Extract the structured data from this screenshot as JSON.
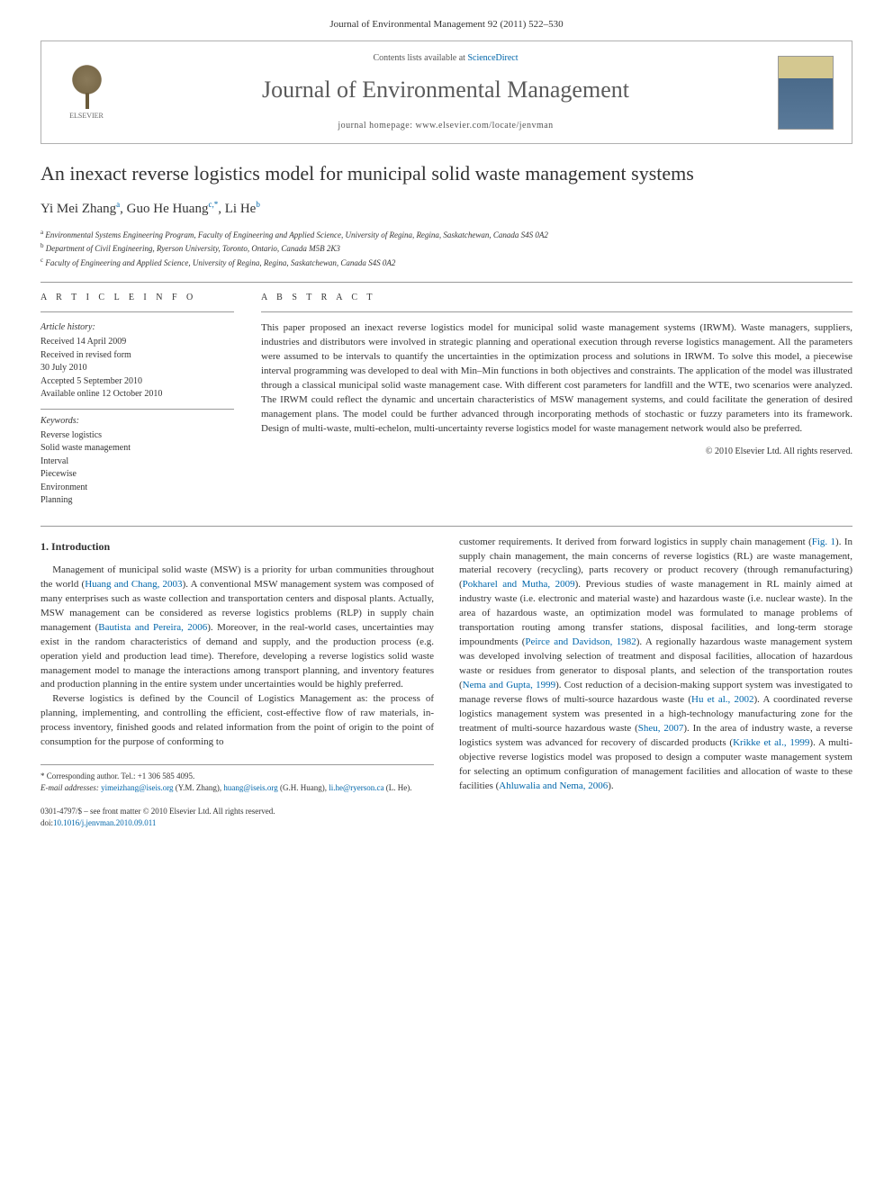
{
  "header": {
    "journal_citation": "Journal of Environmental Management 92 (2011) 522–530",
    "contents_prefix": "Contents lists available at ",
    "contents_link": "ScienceDirect",
    "journal_name": "Journal of Environmental Management",
    "homepage_prefix": "journal homepage: ",
    "homepage_url": "www.elsevier.com/locate/jenvman",
    "publisher_name": "ELSEVIER"
  },
  "article": {
    "title": "An inexact reverse logistics model for municipal solid waste management systems",
    "authors_html": "Yi Mei Zhang|a|, Guo He Huang|c,*|, Li He|b|",
    "authors": [
      {
        "name": "Yi Mei Zhang",
        "sup": "a"
      },
      {
        "name": "Guo He Huang",
        "sup": "c,*"
      },
      {
        "name": "Li He",
        "sup": "b"
      }
    ],
    "affiliations": [
      {
        "sup": "a",
        "text": "Environmental Systems Engineering Program, Faculty of Engineering and Applied Science, University of Regina, Regina, Saskatchewan, Canada S4S 0A2"
      },
      {
        "sup": "b",
        "text": "Department of Civil Engineering, Ryerson University, Toronto, Ontario, Canada M5B 2K3"
      },
      {
        "sup": "c",
        "text": "Faculty of Engineering and Applied Science, University of Regina, Regina, Saskatchewan, Canada S4S 0A2"
      }
    ]
  },
  "article_info": {
    "heading": "A R T I C L E  I N F O",
    "history_label": "Article history:",
    "history": [
      "Received 14 April 2009",
      "Received in revised form",
      "30 July 2010",
      "Accepted 5 September 2010",
      "Available online 12 October 2010"
    ],
    "keywords_label": "Keywords:",
    "keywords": [
      "Reverse logistics",
      "Solid waste management",
      "Interval",
      "Piecewise",
      "Environment",
      "Planning"
    ]
  },
  "abstract": {
    "heading": "A B S T R A C T",
    "text": "This paper proposed an inexact reverse logistics model for municipal solid waste management systems (IRWM). Waste managers, suppliers, industries and distributors were involved in strategic planning and operational execution through reverse logistics management. All the parameters were assumed to be intervals to quantify the uncertainties in the optimization process and solutions in IRWM. To solve this model, a piecewise interval programming was developed to deal with Min–Min functions in both objectives and constraints. The application of the model was illustrated through a classical municipal solid waste management case. With different cost parameters for landfill and the WTE, two scenarios were analyzed. The IRWM could reflect the dynamic and uncertain characteristics of MSW management systems, and could facilitate the generation of desired management plans. The model could be further advanced through incorporating methods of stochastic or fuzzy parameters into its framework. Design of multi-waste, multi-echelon, multi-uncertainty reverse logistics model for waste management network would also be preferred.",
    "copyright": "© 2010 Elsevier Ltd. All rights reserved."
  },
  "body": {
    "section1_heading": "1. Introduction",
    "para1_parts": [
      "Management of municipal solid waste (MSW) is a priority for urban communities throughout the world (",
      "Huang and Chang, 2003",
      "). A conventional MSW management system was composed of many enterprises such as waste collection and transportation centers and disposal plants. Actually, MSW management can be considered as reverse logistics problems (RLP) in supply chain management (",
      "Bautista and Pereira, 2006",
      "). Moreover, in the real-world cases, uncertainties may exist in the random characteristics of demand and supply, and the production process (e.g. operation yield and production lead time). Therefore, developing a reverse logistics solid waste management model to manage the interactions among transport planning, and inventory features and production planning in the entire system under uncertainties would be highly preferred."
    ],
    "para2": "Reverse logistics is defined by the Council of Logistics Management as: the process of planning, implementing, and controlling the efficient, cost-effective flow of raw materials, in-process inventory, finished goods and related information from the point of origin to the point of consumption for the purpose of conforming to",
    "para3_parts": [
      "customer requirements. It derived from forward logistics in supply chain management (",
      "Fig. 1",
      "). In supply chain management, the main concerns of reverse logistics (RL) are waste management, material recovery (recycling), parts recovery or product recovery (through remanufacturing) (",
      "Pokharel and Mutha, 2009",
      "). Previous studies of waste management in RL mainly aimed at industry waste (i.e. electronic and material waste) and hazardous waste (i.e. nuclear waste). In the area of hazardous waste, an optimization model was formulated to manage problems of transportation routing among transfer stations, disposal facilities, and long-term storage impoundments (",
      "Peirce and Davidson, 1982",
      "). A regionally hazardous waste management system was developed involving selection of treatment and disposal facilities, allocation of hazardous waste or residues from generator to disposal plants, and selection of the transportation routes (",
      "Nema and Gupta, 1999",
      "). Cost reduction of a decision-making support system was investigated to manage reverse flows of multi-source hazardous waste (",
      "Hu et al., 2002",
      "). A coordinated reverse logistics management system was presented in a high-technology manufacturing zone for the treatment of multi-source hazardous waste (",
      "Sheu, 2007",
      "). In the area of industry waste, a reverse logistics system was advanced for recovery of discarded products (",
      "Krikke et al., 1999",
      "). A multi-objective reverse logistics model was proposed to design a computer waste management system for selecting an optimum configuration of management facilities and allocation of waste to these facilities (",
      "Ahluwalia and Nema, 2006",
      ")."
    ]
  },
  "footnote": {
    "corresponding": "* Corresponding author. Tel.: +1 306 585 4095.",
    "email_label": "E-mail addresses:",
    "emails": [
      {
        "addr": "yimeizhang@iseis.org",
        "who": "(Y.M. Zhang)"
      },
      {
        "addr": "huang@iseis.org",
        "who": "(G.H. Huang)"
      },
      {
        "addr": "li.he@ryerson.ca",
        "who": "(L. He)"
      }
    ]
  },
  "bottom": {
    "issn": "0301-4797/$ – see front matter © 2010 Elsevier Ltd. All rights reserved.",
    "doi_label": "doi:",
    "doi": "10.1016/j.jenvman.2010.09.011"
  },
  "colors": {
    "link": "#0066aa",
    "text": "#333333",
    "rule": "#999999",
    "journal_title": "#5a5a5a"
  }
}
